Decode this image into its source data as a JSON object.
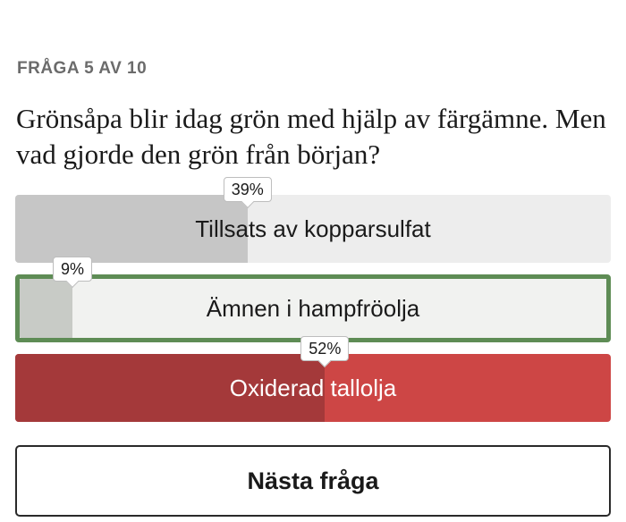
{
  "quiz": {
    "counter": "FRÅGA 5 AV 10",
    "question": "Grönsåpa blir idag grön med hjälp av färgämne. Men vad gjorde den grön från början?",
    "options": [
      {
        "label": "Tillsats av kopparsulfat",
        "percent": 39,
        "percent_label": "39%",
        "state": "neutral"
      },
      {
        "label": "Ämnen i hampfröolja",
        "percent": 9,
        "percent_label": "9%",
        "state": "selected-correct-outline"
      },
      {
        "label": "Oxiderad tallolja",
        "percent": 52,
        "percent_label": "52%",
        "state": "highlighted-red"
      }
    ],
    "next_label": "Nästa fråga"
  },
  "colors": {
    "neutral_track": "#ededed",
    "neutral_fill": "#c6c6c6",
    "outline_green": "#5e8c55",
    "red_track": "#cd4645",
    "red_fill": "#a4393a"
  }
}
